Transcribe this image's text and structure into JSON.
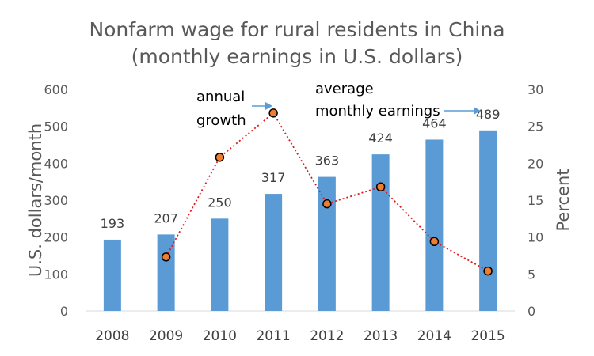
{
  "chart_data": {
    "type": "bar",
    "title": "Nonfarm wage for rural residents in China",
    "subtitle": "(monthly earnings in U.S. dollars)",
    "categories": [
      "2008",
      "2009",
      "2010",
      "2011",
      "2012",
      "2013",
      "2014",
      "2015"
    ],
    "ylabel": "U.S. dollars/month",
    "y2label": "Percent",
    "ylim": [
      0,
      600
    ],
    "y2lim": [
      0,
      30
    ],
    "yticks": [
      "0",
      "100",
      "200",
      "300",
      "400",
      "500",
      "600"
    ],
    "y2ticks": [
      "0",
      "5",
      "10",
      "15",
      "20",
      "25",
      "30"
    ],
    "grid": false,
    "series": [
      {
        "type": "bar",
        "axis": "left",
        "color": "#5B9BD5",
        "values": [
          193,
          207,
          250,
          317,
          363,
          424,
          464,
          489
        ],
        "labels": [
          "193",
          "207",
          "250",
          "317",
          "363",
          "424",
          "464",
          "489"
        ]
      },
      {
        "type": "line",
        "axis": "right",
        "color": "#E31A1C",
        "marker_color": "#ED7D31",
        "style": "dotted",
        "values": [
          null,
          7.3,
          20.8,
          26.8,
          14.5,
          16.8,
          9.4,
          5.4
        ]
      }
    ],
    "annotations": [
      {
        "lines": [
          "annual",
          "growth"
        ],
        "target": "line"
      },
      {
        "lines": [
          "average",
          "monthly earnings"
        ],
        "target": "bar"
      }
    ],
    "annotation_arrow_color": "#5B9BD5"
  }
}
